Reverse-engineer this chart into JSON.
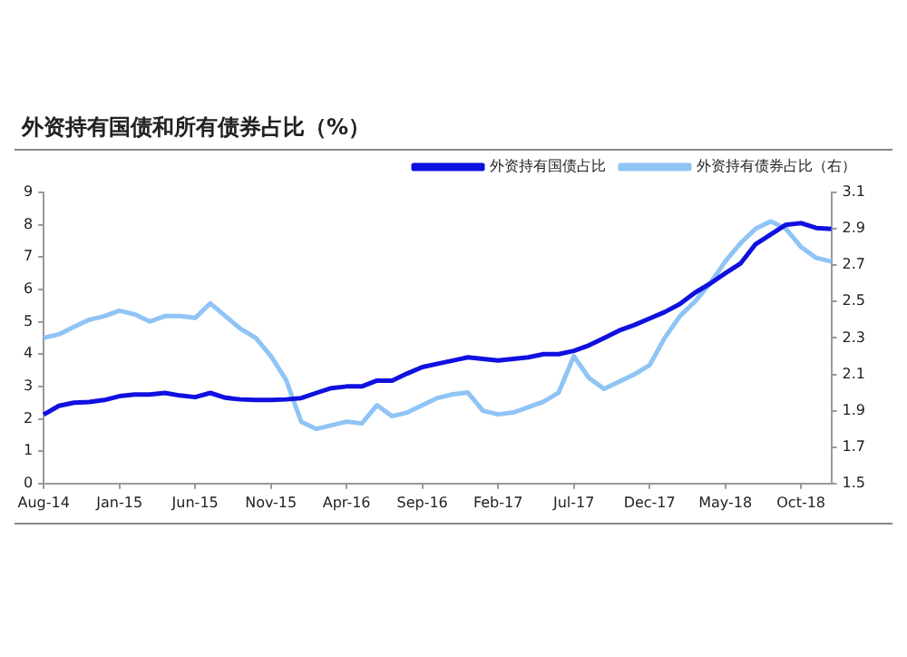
{
  "chart_data": {
    "type": "line",
    "title": "外资持有国债和所有债券占比（%）",
    "categories": [
      "Aug-14",
      null,
      null,
      null,
      null,
      "Jan-15",
      null,
      null,
      null,
      null,
      "Jun-15",
      null,
      null,
      null,
      null,
      "Nov-15",
      null,
      null,
      null,
      null,
      "Apr-16",
      null,
      null,
      null,
      null,
      "Sep-16",
      null,
      null,
      null,
      null,
      "Feb-17",
      null,
      null,
      null,
      null,
      "Jul-17",
      null,
      null,
      null,
      null,
      "Dec-17",
      null,
      null,
      null,
      null,
      "May-18",
      null,
      null,
      null,
      null,
      "Oct-18",
      null,
      null
    ],
    "series": [
      {
        "name": "外资持有国债占比",
        "color": "#1010e0",
        "values": [
          2.13,
          2.4,
          2.5,
          2.52,
          2.58,
          2.7,
          2.75,
          2.75,
          2.8,
          2.72,
          2.67,
          2.8,
          2.65,
          2.6,
          2.58,
          2.58,
          2.6,
          2.64,
          2.8,
          2.95,
          3.0,
          3.0,
          3.18,
          3.18,
          3.4,
          3.6,
          3.7,
          3.8,
          3.9,
          3.85,
          3.8,
          3.85,
          3.9,
          4.0,
          4.0,
          4.1,
          4.27,
          4.5,
          4.73,
          4.9,
          5.1,
          5.3,
          5.55,
          5.9,
          6.18,
          6.5,
          6.8,
          7.4,
          7.7,
          8.0,
          8.05,
          7.9,
          7.87
        ]
      },
      {
        "name": "外资持有债券占比（右）",
        "color": "#8fc4f5",
        "axis": "y2",
        "values": [
          2.3,
          2.32,
          2.36,
          2.4,
          2.42,
          2.45,
          2.43,
          2.39,
          2.42,
          2.42,
          2.41,
          2.49,
          2.42,
          2.35,
          2.3,
          2.2,
          2.07,
          1.84,
          1.8,
          1.82,
          1.84,
          1.83,
          1.93,
          1.87,
          1.89,
          1.93,
          1.97,
          1.99,
          2.0,
          1.9,
          1.88,
          1.89,
          1.92,
          1.95,
          2.0,
          2.2,
          2.08,
          2.02,
          2.06,
          2.1,
          2.15,
          2.3,
          2.42,
          2.5,
          2.6,
          2.72,
          2.82,
          2.9,
          2.94,
          2.9,
          2.8,
          2.74,
          2.72
        ]
      }
    ],
    "ylim": [
      0,
      9
    ],
    "yticks": [
      0,
      1,
      2,
      3,
      4,
      5,
      6,
      7,
      8,
      9
    ],
    "y2lim": [
      1.5,
      3.1
    ],
    "y2ticks": [
      1.5,
      1.7,
      1.9,
      2.1,
      2.3,
      2.5,
      2.7,
      2.9,
      3.1
    ],
    "legend": "top",
    "marker": "none"
  }
}
